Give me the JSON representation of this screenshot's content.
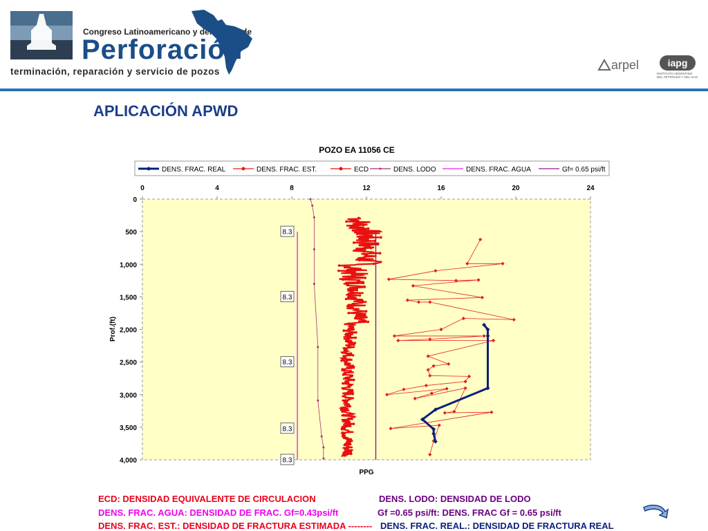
{
  "header": {
    "congreso": "Congreso Latinoamericano y del Caribe de",
    "perforacion": "Perforación",
    "subtitle": "terminación, reparación y servicio de pozos",
    "arpel": "arpel",
    "iapg_badge": "iapg",
    "iapg_text": "INSTITUTO ARGENTINO DEL PETROLEO Y DEL GAS",
    "brand_color": "#1b4e86",
    "rule_color": "#2a72b5"
  },
  "page": {
    "title": "APLICACIÓN APWD"
  },
  "chart_data": {
    "type": "line",
    "title": "POZO EA 11056 CE",
    "xlabel": "PPG",
    "ylabel": "Prof.(ft)",
    "xlim": [
      0,
      24
    ],
    "ylim": [
      4000,
      0
    ],
    "xticks": [
      "0",
      "4",
      "8",
      "12",
      "16",
      "20",
      "24"
    ],
    "yticks": [
      "0",
      "500",
      "1,000",
      "1,500",
      "2,000",
      "2,500",
      "3,000",
      "3,500",
      "4,000"
    ],
    "plot_background": "#ffffc6",
    "legend_position": "top",
    "mud_density_labels": [
      {
        "depth": 500,
        "text": "8.3"
      },
      {
        "depth": 1500,
        "text": "8.3"
      },
      {
        "depth": 2500,
        "text": "8.3"
      },
      {
        "depth": 3520,
        "text": "8.3"
      },
      {
        "depth": 4000,
        "text": "8.3"
      }
    ],
    "series": [
      {
        "name": "DENS. FRAC. REAL",
        "color": "#0a1f7a",
        "x": [
          18.3,
          18.5,
          18.5,
          18.5,
          15.7,
          15.0,
          15.6,
          15.6,
          15.7
        ],
        "y": [
          1930,
          2000,
          2100,
          2900,
          3230,
          3380,
          3530,
          3600,
          3720
        ]
      },
      {
        "name": "DENS. FRAC. EST.",
        "color": "#e81d1d",
        "x": [
          18.1,
          17.4,
          19.3,
          15.7,
          13.2,
          16.8,
          18.0,
          14.5,
          18.2,
          14.2,
          14.8,
          15.4,
          19.9,
          17.2,
          16.0,
          13.5,
          18.3,
          15.4,
          13.7,
          18.8,
          15.3,
          16.4,
          15.6,
          15.3,
          15.4,
          17.5,
          17.3,
          15.2,
          14.0,
          13.1,
          16.3,
          15.5,
          14.6,
          17.3,
          16.7,
          16.2,
          18.7,
          13.3,
          15.9,
          15.6,
          15.4
        ],
        "y": [
          620,
          990,
          990,
          1100,
          1230,
          1250,
          1240,
          1330,
          1510,
          1550,
          1580,
          1580,
          1850,
          1830,
          2000,
          2100,
          2100,
          2150,
          2170,
          2170,
          2410,
          2530,
          2560,
          2620,
          2710,
          2720,
          2800,
          2860,
          2920,
          3000,
          2910,
          2980,
          3060,
          2900,
          3260,
          3280,
          3270,
          3520,
          3470,
          3710,
          3920
        ]
      },
      {
        "name": "ECD",
        "color": "#e81010",
        "x": [],
        "y": []
      },
      {
        "name": "DENS. LODO",
        "color": "#a8326e",
        "x": [
          9.0,
          9.1,
          9.2,
          9.2,
          9.2,
          9.4,
          9.4,
          9.6,
          9.7,
          9.7
        ],
        "y": [
          0,
          100,
          280,
          770,
          1300,
          2270,
          3090,
          3640,
          3810,
          3980
        ]
      },
      {
        "name": "DENS. FRAC. AGUA",
        "color": "#ee22ee",
        "x": [
          8.3,
          8.3
        ],
        "y": [
          500,
          4000
        ]
      },
      {
        "name": "Gf= 0.65 psi/ft",
        "color": "#8b1a8b",
        "x": [
          12.5,
          12.5
        ],
        "y": [
          500,
          4000
        ]
      }
    ]
  },
  "notes": [
    {
      "text": "ECD: DENSIDAD EQUIVALENTE DE CIRCULACION",
      "color": "#e8001c"
    },
    {
      "text": "DENS. LODO: DENSIDAD DE LODO",
      "color": "#6a0080"
    },
    {
      "text": "DENS. FRAC. AGUA: DENSIDAD DE FRAC. Gf=0.43psi/ft",
      "color": "#ee00ee"
    },
    {
      "text": "Gf =0.65 psi/ft: DENS. FRAC Gf = 0.65 psi/ft",
      "color": "#6a0080"
    },
    {
      "text": "DENS. FRAC. EST.: DENSIDAD DE FRACTURA ESTIMADA --------",
      "color": "#e8001c"
    },
    {
      "text": "DENS. FRAC. REAL.: DENSIDAD DE FRACTURA REAL",
      "color": "#0a1f7a"
    }
  ]
}
